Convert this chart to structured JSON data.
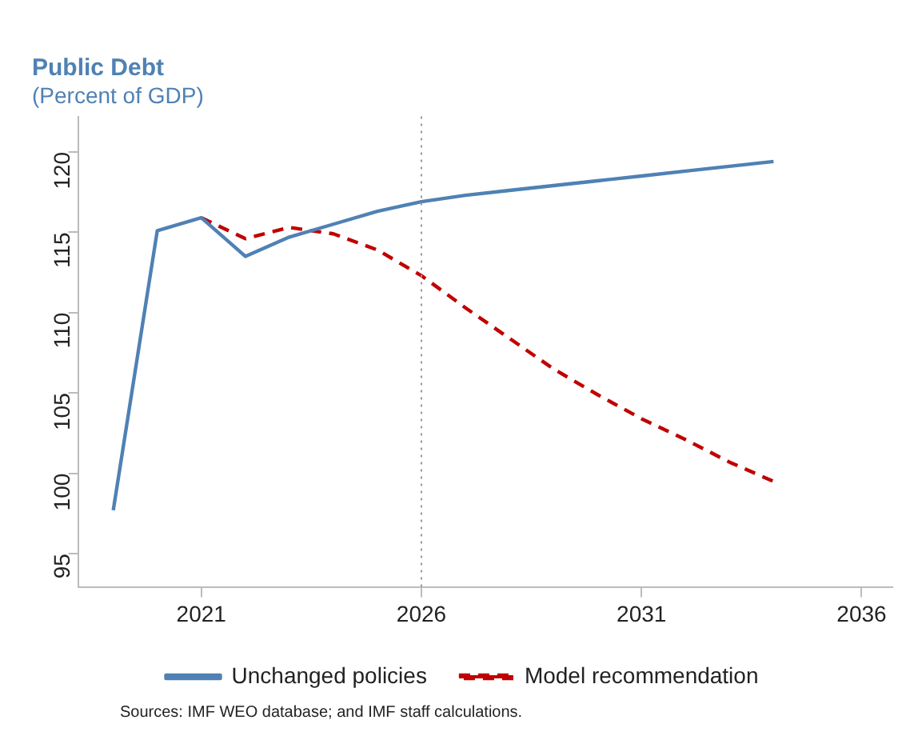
{
  "chart_data": {
    "type": "line",
    "title": "Public Debt",
    "subtitle": "(Percent of GDP)",
    "x": [
      2019,
      2020,
      2021,
      2022,
      2023,
      2024,
      2025,
      2026,
      2027,
      2028,
      2029,
      2030,
      2031,
      2032,
      2033,
      2034
    ],
    "series": [
      {
        "name": "Unchanged policies",
        "color": "#4f81b4",
        "line_style": "solid",
        "values": [
          97.7,
          115.1,
          115.9,
          113.5,
          114.7,
          115.5,
          116.3,
          116.9,
          117.3,
          117.6,
          117.9,
          118.2,
          118.5,
          118.8,
          119.1,
          119.4
        ]
      },
      {
        "name": "Model recommendation",
        "color": "#c00000",
        "line_style": "dashed",
        "values": [
          null,
          null,
          115.9,
          114.6,
          115.3,
          114.9,
          113.9,
          112.3,
          110.3,
          108.4,
          106.5,
          104.9,
          103.4,
          102.1,
          100.7,
          99.5
        ]
      }
    ],
    "xlim": [
      2018.2,
      2036.7
    ],
    "xticks": [
      2021,
      2026,
      2031,
      2036
    ],
    "ylim": [
      92.9,
      122.2
    ],
    "yticks": [
      95,
      100,
      105,
      110,
      115,
      120
    ],
    "ref_lines": [
      {
        "axis": "x",
        "value": 2026,
        "color": "#999999",
        "line_style": "dotted"
      }
    ],
    "grid": false,
    "legend": "bottom",
    "marker": "none",
    "annotations": [
      "Sources: IMF WEO database; and IMF staff calculations."
    ]
  }
}
